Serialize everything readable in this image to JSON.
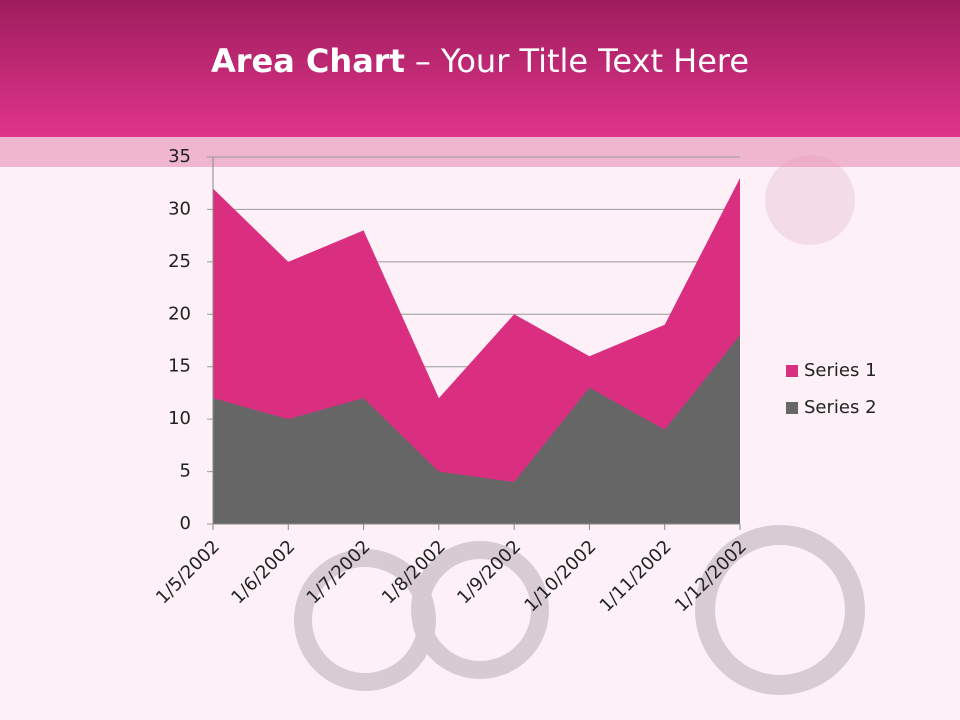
{
  "chart_data": {
    "type": "area",
    "title_bold": "Area Chart",
    "title_rest": "– Your Title Text Here",
    "categories": [
      "1/5/2002",
      "1/6/2002",
      "1/7/2002",
      "1/8/2002",
      "1/9/2002",
      "1/10/2002",
      "1/11/2002",
      "1/12/2002"
    ],
    "series": [
      {
        "name": "Series 1",
        "color": "#da2f80",
        "values": [
          32,
          25,
          28,
          12,
          20,
          16,
          19,
          33
        ]
      },
      {
        "name": "Series 2",
        "color": "#666666",
        "values": [
          12,
          10,
          12,
          5,
          4,
          13,
          9,
          18
        ]
      }
    ],
    "ylim": [
      0,
      35
    ],
    "yticks": [
      0,
      5,
      10,
      15,
      20,
      25,
      30,
      35
    ],
    "grid": true,
    "legend": "right"
  }
}
